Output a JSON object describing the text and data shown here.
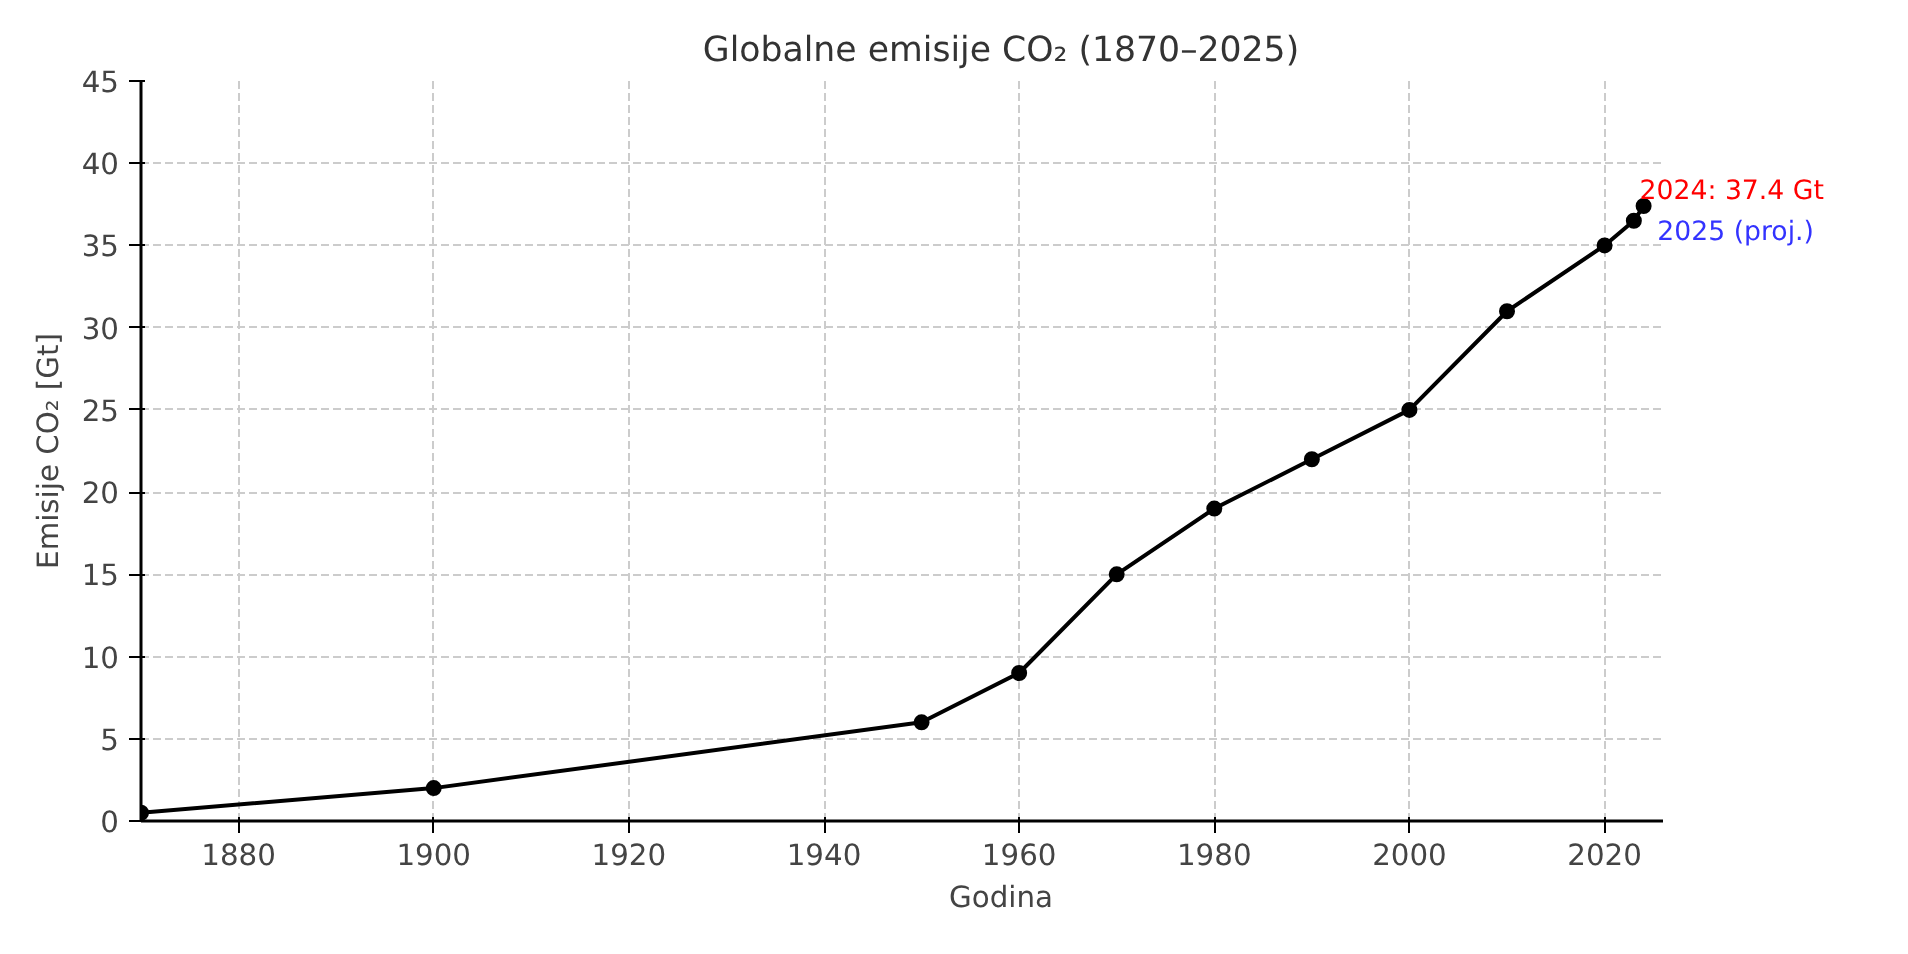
{
  "chart_data": {
    "type": "line",
    "title": "Globalne emisije CO₂ (1870–2025)",
    "xlabel": "Godina",
    "ylabel": "Emisije CO₂ [Gt]",
    "x": [
      1870,
      1900,
      1950,
      1960,
      1970,
      1980,
      1990,
      2000,
      2010,
      2020,
      2023,
      2024
    ],
    "series": [
      {
        "color": "#000000",
        "values": [
          0.5,
          2,
          6,
          9,
          15,
          19,
          22,
          25,
          31,
          35,
          36.5,
          37.4
        ]
      }
    ],
    "xlim": [
      1870,
      2026
    ],
    "xticks": [
      1880,
      1900,
      1920,
      1940,
      1960,
      1980,
      2000,
      2020
    ],
    "ylim": [
      0,
      45
    ],
    "yticks": [
      0,
      5,
      10,
      15,
      20,
      25,
      30,
      35,
      40,
      45
    ],
    "annotations": [
      {
        "text": "2024: 37.4 Gt",
        "x": 2024,
        "y": 37.4
      },
      {
        "text": "2025 (proj.)",
        "x": 2025,
        "y": 36.5
      }
    ],
    "grid": true,
    "marker": "circle",
    "line_style": "solid"
  }
}
